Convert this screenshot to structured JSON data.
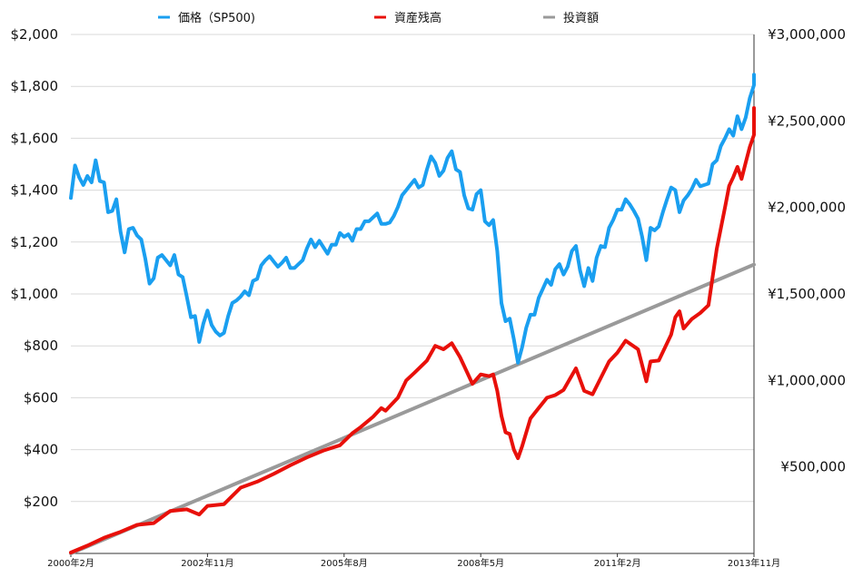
{
  "chart_data": {
    "type": "line",
    "title": "",
    "legend_position": "top",
    "grid": true,
    "x_tick_labels": [
      "2000年2月",
      "2002年11月",
      "2005年8月",
      "2008年5月",
      "2011年2月",
      "2013年11月"
    ],
    "x_range": [
      "2000-02",
      "2013-11"
    ],
    "y_left": {
      "ylim": [
        0,
        2000
      ],
      "tick_labels": [
        "$200",
        "$400",
        "$600",
        "$800",
        "$1,000",
        "$1,200",
        "$1,400",
        "$1,600",
        "$1,800",
        "$2,000"
      ]
    },
    "y_right": {
      "ylim": [
        0,
        3000000
      ],
      "tick_labels": [
        "¥500,000",
        "¥1,000,000",
        "¥1,500,000",
        "¥2,000,000",
        "¥2,500,000",
        "¥3,000,000"
      ]
    },
    "series": [
      {
        "name": "価格（SP500)",
        "axis": "left",
        "color": "#1a9ff0",
        "points": [
          [
            "2000-02",
            1370
          ],
          [
            "2000-03",
            1495
          ],
          [
            "2000-04",
            1450
          ],
          [
            "2000-05",
            1420
          ],
          [
            "2000-06",
            1455
          ],
          [
            "2000-07",
            1430
          ],
          [
            "2000-08",
            1515
          ],
          [
            "2000-09",
            1435
          ],
          [
            "2000-10",
            1430
          ],
          [
            "2000-11",
            1315
          ],
          [
            "2000-12",
            1320
          ],
          [
            "2001-01",
            1365
          ],
          [
            "2001-02",
            1240
          ],
          [
            "2001-03",
            1160
          ],
          [
            "2001-04",
            1250
          ],
          [
            "2001-05",
            1255
          ],
          [
            "2001-06",
            1225
          ],
          [
            "2001-07",
            1210
          ],
          [
            "2001-08",
            1135
          ],
          [
            "2001-09",
            1040
          ],
          [
            "2001-10",
            1060
          ],
          [
            "2001-11",
            1140
          ],
          [
            "2001-12",
            1150
          ],
          [
            "2002-01",
            1130
          ],
          [
            "2002-02",
            1110
          ],
          [
            "2002-03",
            1150
          ],
          [
            "2002-04",
            1075
          ],
          [
            "2002-05",
            1065
          ],
          [
            "2002-06",
            990
          ],
          [
            "2002-07",
            910
          ],
          [
            "2002-08",
            915
          ],
          [
            "2002-09",
            815
          ],
          [
            "2002-10",
            885
          ],
          [
            "2002-11",
            936
          ],
          [
            "2002-12",
            880
          ],
          [
            "2003-01",
            855
          ],
          [
            "2003-02",
            840
          ],
          [
            "2003-03",
            850
          ],
          [
            "2003-04",
            915
          ],
          [
            "2003-05",
            965
          ],
          [
            "2003-06",
            975
          ],
          [
            "2003-07",
            990
          ],
          [
            "2003-08",
            1010
          ],
          [
            "2003-09",
            995
          ],
          [
            "2003-10",
            1050
          ],
          [
            "2003-11",
            1058
          ],
          [
            "2003-12",
            1110
          ],
          [
            "2004-01",
            1130
          ],
          [
            "2004-02",
            1145
          ],
          [
            "2004-03",
            1125
          ],
          [
            "2004-04",
            1105
          ],
          [
            "2004-05",
            1120
          ],
          [
            "2004-06",
            1140
          ],
          [
            "2004-07",
            1100
          ],
          [
            "2004-08",
            1100
          ],
          [
            "2004-09",
            1115
          ],
          [
            "2004-10",
            1130
          ],
          [
            "2004-11",
            1175
          ],
          [
            "2004-12",
            1210
          ],
          [
            "2005-01",
            1180
          ],
          [
            "2005-02",
            1205
          ],
          [
            "2005-03",
            1180
          ],
          [
            "2005-04",
            1155
          ],
          [
            "2005-05",
            1190
          ],
          [
            "2005-06",
            1190
          ],
          [
            "2005-07",
            1235
          ],
          [
            "2005-08",
            1220
          ],
          [
            "2005-09",
            1230
          ],
          [
            "2005-10",
            1205
          ],
          [
            "2005-11",
            1250
          ],
          [
            "2005-12",
            1250
          ],
          [
            "2006-01",
            1280
          ],
          [
            "2006-02",
            1280
          ],
          [
            "2006-03",
            1295
          ],
          [
            "2006-04",
            1310
          ],
          [
            "2006-05",
            1270
          ],
          [
            "2006-06",
            1270
          ],
          [
            "2006-07",
            1275
          ],
          [
            "2006-08",
            1300
          ],
          [
            "2006-09",
            1335
          ],
          [
            "2006-10",
            1380
          ],
          [
            "2006-11",
            1400
          ],
          [
            "2006-12",
            1420
          ],
          [
            "2007-01",
            1440
          ],
          [
            "2007-02",
            1410
          ],
          [
            "2007-03",
            1420
          ],
          [
            "2007-04",
            1480
          ],
          [
            "2007-05",
            1530
          ],
          [
            "2007-06",
            1505
          ],
          [
            "2007-07",
            1455
          ],
          [
            "2007-08",
            1475
          ],
          [
            "2007-09",
            1525
          ],
          [
            "2007-10",
            1550
          ],
          [
            "2007-11",
            1480
          ],
          [
            "2007-12",
            1470
          ],
          [
            "2008-01",
            1380
          ],
          [
            "2008-02",
            1330
          ],
          [
            "2008-03",
            1325
          ],
          [
            "2008-04",
            1385
          ],
          [
            "2008-05",
            1400
          ],
          [
            "2008-06",
            1280
          ],
          [
            "2008-07",
            1265
          ],
          [
            "2008-08",
            1285
          ],
          [
            "2008-09",
            1165
          ],
          [
            "2008-10",
            965
          ],
          [
            "2008-11",
            895
          ],
          [
            "2008-12",
            905
          ],
          [
            "2009-01",
            825
          ],
          [
            "2009-02",
            735
          ],
          [
            "2009-03",
            795
          ],
          [
            "2009-04",
            870
          ],
          [
            "2009-05",
            920
          ],
          [
            "2009-06",
            920
          ],
          [
            "2009-07",
            985
          ],
          [
            "2009-08",
            1020
          ],
          [
            "2009-09",
            1055
          ],
          [
            "2009-10",
            1035
          ],
          [
            "2009-11",
            1095
          ],
          [
            "2009-12",
            1115
          ],
          [
            "2010-01",
            1075
          ],
          [
            "2010-02",
            1105
          ],
          [
            "2010-03",
            1165
          ],
          [
            "2010-04",
            1185
          ],
          [
            "2010-05",
            1090
          ],
          [
            "2010-06",
            1030
          ],
          [
            "2010-07",
            1100
          ],
          [
            "2010-08",
            1050
          ],
          [
            "2010-09",
            1140
          ],
          [
            "2010-10",
            1185
          ],
          [
            "2010-11",
            1180
          ],
          [
            "2010-12",
            1255
          ],
          [
            "2011-01",
            1285
          ],
          [
            "2011-02",
            1325
          ],
          [
            "2011-03",
            1325
          ],
          [
            "2011-04",
            1365
          ],
          [
            "2011-05",
            1345
          ],
          [
            "2011-06",
            1320
          ],
          [
            "2011-07",
            1290
          ],
          [
            "2011-08",
            1220
          ],
          [
            "2011-09",
            1130
          ],
          [
            "2011-10",
            1255
          ],
          [
            "2011-11",
            1245
          ],
          [
            "2011-12",
            1260
          ],
          [
            "2012-01",
            1315
          ],
          [
            "2012-02",
            1365
          ],
          [
            "2012-03",
            1410
          ],
          [
            "2012-04",
            1400
          ],
          [
            "2012-05",
            1315
          ],
          [
            "2012-06",
            1360
          ],
          [
            "2012-07",
            1380
          ],
          [
            "2012-08",
            1405
          ],
          [
            "2012-09",
            1440
          ],
          [
            "2012-10",
            1415
          ],
          [
            "2012-11",
            1420
          ],
          [
            "2012-12",
            1425
          ],
          [
            "2013-01",
            1500
          ],
          [
            "2013-02",
            1515
          ],
          [
            "2013-03",
            1570
          ],
          [
            "2013-04",
            1600
          ],
          [
            "2013-05",
            1635
          ],
          [
            "2013-06",
            1610
          ],
          [
            "2013-07",
            1685
          ],
          [
            "2013-08",
            1635
          ],
          [
            "2013-09",
            1680
          ],
          [
            "2013-10",
            1755
          ],
          [
            "2013-11",
            1805
          ],
          [
            "2013-12",
            1845
          ]
        ]
      },
      {
        "name": "資産残高",
        "axis": "right",
        "color": "#e8100a",
        "points": [
          [
            "2000-02",
            5000
          ],
          [
            "2000-06",
            45000
          ],
          [
            "2000-10",
            90000
          ],
          [
            "2001-02",
            125000
          ],
          [
            "2001-06",
            165000
          ],
          [
            "2001-10",
            175000
          ],
          [
            "2002-02",
            245000
          ],
          [
            "2002-06",
            255000
          ],
          [
            "2002-09",
            225000
          ],
          [
            "2002-11",
            275000
          ],
          [
            "2003-03",
            285000
          ],
          [
            "2003-07",
            380000
          ],
          [
            "2003-11",
            415000
          ],
          [
            "2004-03",
            460000
          ],
          [
            "2004-07",
            510000
          ],
          [
            "2004-11",
            555000
          ],
          [
            "2005-03",
            595000
          ],
          [
            "2005-07",
            625000
          ],
          [
            "2005-10",
            695000
          ],
          [
            "2005-12",
            730000
          ],
          [
            "2006-03",
            790000
          ],
          [
            "2006-05",
            840000
          ],
          [
            "2006-06",
            825000
          ],
          [
            "2006-09",
            900000
          ],
          [
            "2006-11",
            1000000
          ],
          [
            "2007-01",
            1045000
          ],
          [
            "2007-04",
            1115000
          ],
          [
            "2007-06",
            1200000
          ],
          [
            "2007-08",
            1180000
          ],
          [
            "2007-10",
            1215000
          ],
          [
            "2007-12",
            1135000
          ],
          [
            "2008-03",
            980000
          ],
          [
            "2008-05",
            1035000
          ],
          [
            "2008-07",
            1025000
          ],
          [
            "2008-08",
            1035000
          ],
          [
            "2008-09",
            940000
          ],
          [
            "2008-10",
            795000
          ],
          [
            "2008-11",
            700000
          ],
          [
            "2008-12",
            690000
          ],
          [
            "2009-01",
            600000
          ],
          [
            "2009-02",
            550000
          ],
          [
            "2009-03",
            620000
          ],
          [
            "2009-05",
            780000
          ],
          [
            "2009-07",
            840000
          ],
          [
            "2009-09",
            900000
          ],
          [
            "2009-11",
            915000
          ],
          [
            "2010-01",
            945000
          ],
          [
            "2010-04",
            1070000
          ],
          [
            "2010-06",
            940000
          ],
          [
            "2010-08",
            920000
          ],
          [
            "2010-10",
            1015000
          ],
          [
            "2010-12",
            1110000
          ],
          [
            "2011-02",
            1160000
          ],
          [
            "2011-04",
            1230000
          ],
          [
            "2011-07",
            1180000
          ],
          [
            "2011-09",
            995000
          ],
          [
            "2011-10",
            1110000
          ],
          [
            "2011-12",
            1115000
          ],
          [
            "2012-03",
            1265000
          ],
          [
            "2012-04",
            1365000
          ],
          [
            "2012-05",
            1400000
          ],
          [
            "2012-06",
            1300000
          ],
          [
            "2012-08",
            1355000
          ],
          [
            "2012-10",
            1390000
          ],
          [
            "2012-12",
            1435000
          ],
          [
            "2013-02",
            1760000
          ],
          [
            "2013-04",
            2000000
          ],
          [
            "2013-05",
            2125000
          ],
          [
            "2013-06",
            2175000
          ],
          [
            "2013-07",
            2235000
          ],
          [
            "2013-08",
            2165000
          ],
          [
            "2013-09",
            2260000
          ],
          [
            "2013-10",
            2350000
          ],
          [
            "2013-11",
            2420000
          ],
          [
            "2013-12",
            2575000
          ]
        ]
      },
      {
        "name": "投資額",
        "axis": "right",
        "color": "#9a9a9a",
        "points": [
          [
            "2000-02",
            0
          ],
          [
            "2013-12",
            1670000
          ]
        ]
      }
    ]
  }
}
